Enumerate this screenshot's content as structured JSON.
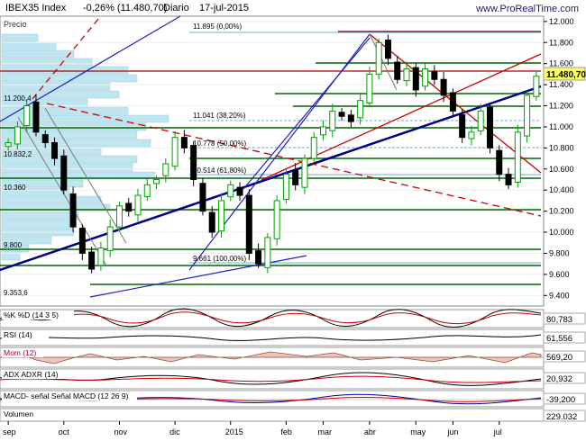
{
  "header": {
    "symbol": "IBEX35 Index",
    "change": "-0,26% (11.480,70)",
    "period": "Diario",
    "date": "17-jul-2015",
    "site": "www.ProRealTime.com"
  },
  "main_panel": {
    "label": "Precio",
    "current_price_tag": "11.480,70",
    "price_labels": [
      "12.000",
      "11.800",
      "11.600",
      "11.400",
      "11.200",
      "11.000",
      "10.800",
      "10.600",
      "10.400",
      "10.200",
      "10.000",
      "9.800",
      "9.600",
      "9.400"
    ],
    "fib_labels": {
      "f0": "11.895 (0,00%)",
      "f38": "11.041 (38,20%)",
      "f50": "10.778 (50,00%)",
      "f61": "10.514 (61,80%)",
      "f100": "9.661 (100,00%)"
    },
    "level_labels": {
      "l11200": "11.200,4",
      "l10832": "10.832,2",
      "l10360": "10.360",
      "l9800": "9.800",
      "l9353": "9.353,6"
    }
  },
  "chart_data": {
    "type": "candlestick",
    "instrument": "IBEX35 Index",
    "timeframe": "Diario",
    "x_labels": [
      "sep",
      "oct",
      "nov",
      "dic",
      "2015",
      "feb",
      "mar",
      "abr",
      "may",
      "jun",
      "jul"
    ],
    "ylim": [
      9300,
      12050
    ],
    "close_path": [
      [
        "sep",
        10850
      ],
      [
        "sep",
        11000
      ],
      [
        "sep",
        11200
      ],
      [
        "sep",
        10950
      ],
      [
        "sep",
        10850
      ],
      [
        "sep",
        10700
      ],
      [
        "oct",
        10400
      ],
      [
        "oct",
        10050
      ],
      [
        "oct",
        9800
      ],
      [
        "oct",
        9650
      ],
      [
        "oct",
        9850
      ],
      [
        "oct",
        10050
      ],
      [
        "nov",
        10250
      ],
      [
        "nov",
        10200
      ],
      [
        "nov",
        10350
      ],
      [
        "nov",
        10450
      ],
      [
        "nov",
        10500
      ],
      [
        "nov",
        10650
      ],
      [
        "dic",
        10900
      ],
      [
        "dic",
        10800
      ],
      [
        "dic",
        10500
      ],
      [
        "dic",
        10200
      ],
      [
        "dic",
        10000
      ],
      [
        "dic",
        10300
      ],
      [
        "2015",
        10450
      ],
      [
        "2015",
        10350
      ],
      [
        "2015",
        9800
      ],
      [
        "2015",
        9700
      ],
      [
        "2015",
        9950
      ],
      [
        "2015",
        10300
      ],
      [
        "feb",
        10550
      ],
      [
        "feb",
        10450
      ],
      [
        "feb",
        10700
      ],
      [
        "feb",
        10900
      ],
      [
        "mar",
        11000
      ],
      [
        "mar",
        11150
      ],
      [
        "mar",
        11100
      ],
      [
        "mar",
        11050
      ],
      [
        "mar",
        11250
      ],
      [
        "abr",
        11500
      ],
      [
        "abr",
        11800
      ],
      [
        "abr",
        11650
      ],
      [
        "abr",
        11450
      ],
      [
        "abr",
        11550
      ],
      [
        "may",
        11350
      ],
      [
        "may",
        11550
      ],
      [
        "may",
        11450
      ],
      [
        "may",
        11300
      ],
      [
        "jun",
        11150
      ],
      [
        "jun",
        10900
      ],
      [
        "jun",
        10950
      ],
      [
        "jun",
        11150
      ],
      [
        "jun",
        10800
      ],
      [
        "jul",
        10550
      ],
      [
        "jul",
        10450
      ],
      [
        "jul",
        10950
      ],
      [
        "jul",
        11300
      ],
      [
        "jul",
        11480
      ]
    ],
    "fibonacci": [
      {
        "level": "0,00%",
        "value": 11895
      },
      {
        "level": "38,20%",
        "value": 11041
      },
      {
        "level": "50,00%",
        "value": 10778
      },
      {
        "level": "61,80%",
        "value": 10514
      },
      {
        "level": "100,00%",
        "value": 9661
      }
    ],
    "last": 11480.7
  },
  "indicators": [
    {
      "name": "%K %D (14 3 5)",
      "value": "80,783"
    },
    {
      "name": "RSI (14)",
      "value": "61,556"
    },
    {
      "name": "Mom (12)",
      "value": "569,20"
    },
    {
      "name": "ADX ADXR (14)",
      "value": "20,932"
    },
    {
      "name": "MACD- señal Señal MACD (12 26 9)",
      "value": "-39,200"
    },
    {
      "name": "Volumen",
      "value": "229.032"
    }
  ],
  "colors": {
    "candle_up": "#00a000",
    "candle_down": "#000000",
    "trend_blue": "#00008b",
    "fib_red": "#cc0000",
    "green_level": "#006600",
    "tag_yellow": "#ffff66",
    "volume_profile": "#bfe6f0"
  }
}
